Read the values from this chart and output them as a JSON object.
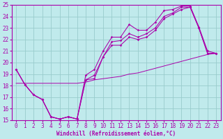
{
  "xlabel": "Windchill (Refroidissement éolien,°C)",
  "xlim": [
    -0.5,
    23.5
  ],
  "ylim": [
    15,
    25
  ],
  "xticks": [
    0,
    1,
    2,
    3,
    4,
    5,
    6,
    7,
    8,
    9,
    10,
    11,
    12,
    13,
    14,
    15,
    16,
    17,
    18,
    19,
    20,
    21,
    22,
    23
  ],
  "yticks": [
    15,
    16,
    17,
    18,
    19,
    20,
    21,
    22,
    23,
    24,
    25
  ],
  "bg_color": "#c0eaec",
  "line_color": "#aa00aa",
  "grid_color": "#99cccc",
  "line1_y": [
    19.4,
    18.1,
    17.2,
    16.8,
    15.3,
    15.1,
    15.3,
    15.1,
    18.9,
    19.4,
    21.0,
    22.2,
    22.2,
    23.3,
    22.8,
    22.8,
    23.5,
    24.5,
    24.6,
    24.9,
    24.9,
    23.1,
    21.0,
    20.8
  ],
  "line2_y": [
    19.4,
    18.1,
    17.2,
    16.8,
    15.3,
    15.1,
    15.3,
    15.1,
    18.5,
    18.9,
    20.5,
    21.8,
    21.9,
    22.5,
    22.2,
    22.5,
    23.0,
    24.0,
    24.3,
    24.8,
    24.8,
    23.0,
    20.8,
    20.8
  ],
  "line3_y": [
    19.4,
    18.1,
    17.2,
    16.8,
    15.3,
    15.1,
    15.3,
    15.1,
    18.5,
    18.6,
    20.5,
    21.5,
    21.5,
    22.2,
    22.0,
    22.2,
    22.8,
    23.8,
    24.2,
    24.6,
    24.8,
    23.0,
    20.8,
    20.8
  ],
  "trend_y": [
    18.2,
    18.2,
    18.2,
    18.2,
    18.2,
    18.2,
    18.2,
    18.2,
    18.3,
    18.5,
    18.6,
    18.7,
    18.8,
    19.0,
    19.1,
    19.3,
    19.5,
    19.7,
    19.9,
    20.1,
    20.3,
    20.5,
    20.7,
    20.8
  ]
}
